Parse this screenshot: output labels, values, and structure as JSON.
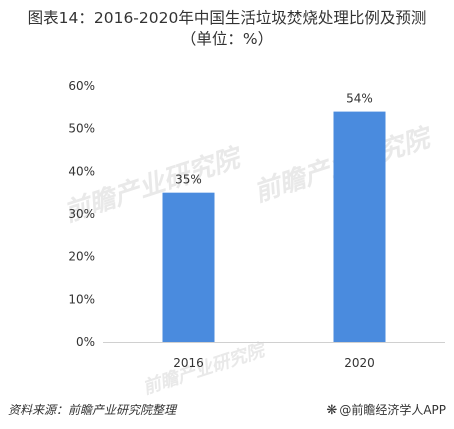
{
  "title_line1": "图表14：2016-2020年中国生活垃圾焚烧处理比例及预测",
  "title_line2": "（单位：%）",
  "chart_data": {
    "type": "bar",
    "categories": [
      "2016",
      "2020"
    ],
    "values": [
      35,
      54
    ],
    "value_labels": [
      "35%",
      "54%"
    ],
    "y_tick_values": [
      0,
      10,
      20,
      30,
      40,
      50,
      60
    ],
    "y_tick_labels": [
      "0%",
      "10%",
      "20%",
      "30%",
      "40%",
      "50%",
      "60%"
    ],
    "ylim": [
      0,
      60
    ],
    "grid": false,
    "bar_color": "#4a8bde",
    "xlabel": "",
    "ylabel": ""
  },
  "watermark_text": "前瞻产业研究院",
  "footer": {
    "source": "资料来源：前瞻产业研究院整理",
    "brand": "@前瞻经济学人APP",
    "brand_icon": "qianzhan-logo-icon"
  }
}
